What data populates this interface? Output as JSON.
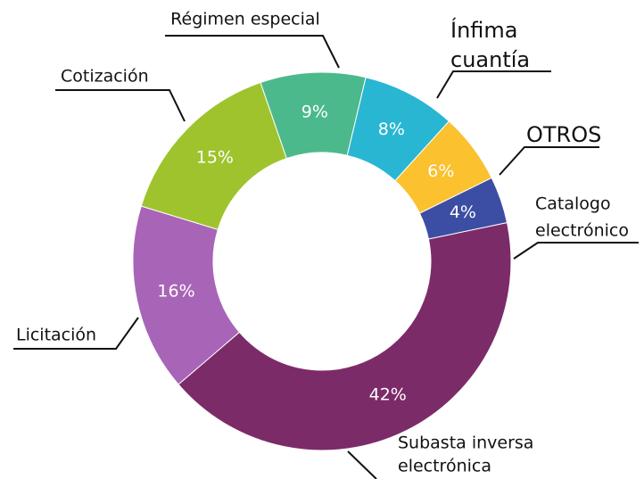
{
  "chart_data": {
    "type": "donut",
    "categories": [
      [
        "Régimen especial"
      ],
      [
        "Ínfima",
        "cuantía"
      ],
      [
        "OTROS"
      ],
      [
        "Catalogo",
        "electrónico"
      ],
      [
        "Subasta inversa",
        "electrónica"
      ],
      [
        "Licitación"
      ],
      [
        "Cotización"
      ]
    ],
    "values": [
      9,
      8,
      6,
      4,
      42,
      16,
      15
    ],
    "value_labels": [
      "9%",
      "8%",
      "6%",
      "4%",
      "42%",
      "16%",
      "15%"
    ],
    "colors": [
      "#4cb98c",
      "#29b6d2",
      "#fbc12e",
      "#3c4ea3",
      "#7c2b69",
      "#a865b7",
      "#9fc32d"
    ]
  }
}
